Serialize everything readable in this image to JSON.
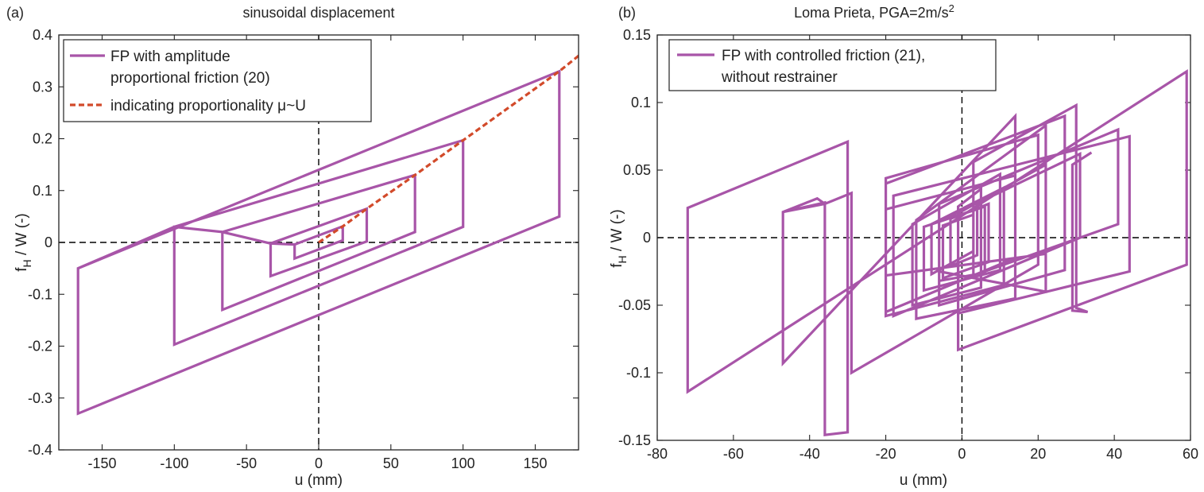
{
  "colors": {
    "series": "#a855a8",
    "proportionality": "#d24a2a",
    "axis": "#222222",
    "zero_line": "#000000"
  },
  "chart_data": [
    {
      "type": "line",
      "panel_label": "(a)",
      "title": "sinusoidal displacement",
      "xlabel": "u (mm)",
      "ylabel_main": "f",
      "ylabel_sub": "H",
      "ylabel_rest": " / W (-)",
      "xlim": [
        -180,
        180
      ],
      "ylim": [
        -0.4,
        0.4
      ],
      "xticks": [
        -150,
        -100,
        -50,
        0,
        50,
        100,
        150
      ],
      "yticks": [
        -0.4,
        -0.3,
        -0.2,
        -0.1,
        0,
        0.1,
        0.2,
        0.3,
        0.4
      ],
      "grid": false,
      "zero_lines": true,
      "legend_position": "top-left",
      "legend": [
        "FP with amplitude",
        "proportional friction (20)",
        "indicating proportionality μ~U"
      ],
      "series": [
        {
          "name": "FP with amplitude proportional friction (20)",
          "style": "solid",
          "points": [
            [
              -166.7,
              -0.05
            ],
            [
              166.7,
              0.33
            ],
            [
              166.7,
              0.05
            ],
            [
              -166.7,
              -0.33
            ],
            [
              -166.7,
              -0.05
            ],
            [
              -100,
              0.03
            ],
            [
              100,
              0.197
            ],
            [
              100,
              0.03
            ],
            [
              -100,
              -0.197
            ],
            [
              -100,
              0.03
            ],
            [
              -66.7,
              0.02
            ],
            [
              66.7,
              0.13
            ],
            [
              66.7,
              0.02
            ],
            [
              -66.7,
              -0.13
            ],
            [
              -66.7,
              0.02
            ],
            [
              -33.3,
              -0.002
            ],
            [
              33.3,
              0.065
            ],
            [
              33.3,
              0.002
            ],
            [
              -33.3,
              -0.065
            ],
            [
              -33.3,
              -0.002
            ],
            [
              -16.7,
              -0.004
            ],
            [
              16.7,
              0.031
            ],
            [
              16.7,
              0.004
            ],
            [
              -16.7,
              -0.031
            ],
            [
              -16.7,
              -0.004
            ]
          ]
        },
        {
          "name": "indicating proportionality μ~U",
          "style": "dashed",
          "points": [
            [
              0,
              0
            ],
            [
              16.7,
              0.031
            ],
            [
              33.3,
              0.065
            ],
            [
              66.7,
              0.13
            ],
            [
              100,
              0.197
            ],
            [
              166.7,
              0.33
            ],
            [
              181,
              0.362
            ]
          ]
        }
      ]
    },
    {
      "type": "line",
      "panel_label": "(b)",
      "title": "Loma Prieta, PGA=2m/s",
      "title_superscript": "2",
      "xlabel": "u (mm)",
      "ylabel_main": "f",
      "ylabel_sub": "H",
      "ylabel_rest": " / W (-)",
      "xlim": [
        -80,
        60
      ],
      "ylim": [
        -0.15,
        0.15
      ],
      "xticks": [
        -80,
        -60,
        -40,
        -20,
        0,
        20,
        40,
        60
      ],
      "yticks": [
        -0.15,
        -0.1,
        -0.05,
        0,
        0.05,
        0.1,
        0.15
      ],
      "grid": false,
      "zero_lines": true,
      "legend_position": "top-left",
      "legend": [
        "FP with controlled friction (21),",
        "without restrainer"
      ],
      "series": [
        {
          "name": "FP with controlled friction (21), without restrainer",
          "style": "solid",
          "points": [
            [
              -72,
              -0.114
            ],
            [
              -72,
              0.022
            ],
            [
              -30,
              0.071
            ],
            [
              -30,
              -0.144
            ],
            [
              -36,
              -0.146
            ],
            [
              -36,
              0.025
            ],
            [
              -38,
              0.029
            ],
            [
              -47,
              0.019
            ],
            [
              -47,
              -0.093
            ],
            [
              14,
              0.09
            ],
            [
              14,
              -0.015
            ],
            [
              -20,
              -0.055
            ],
            [
              -20,
              0.044
            ],
            [
              20,
              0.076
            ],
            [
              20,
              -0.02
            ],
            [
              -29,
              -0.1
            ],
            [
              -29,
              0.033
            ],
            [
              -36,
              0.025
            ],
            [
              -47,
              0.019
            ],
            [
              -36,
              0.026
            ],
            [
              -36,
              -0.146
            ],
            [
              -30,
              -0.144
            ],
            [
              -30,
              0.071
            ],
            [
              -72,
              0.022
            ],
            [
              -72,
              -0.114
            ],
            [
              59,
              0.123
            ],
            [
              59,
              -0.02
            ],
            [
              -1,
              -0.083
            ],
            [
              -1,
              0.023
            ],
            [
              5,
              0.036
            ],
            [
              5,
              -0.037
            ],
            [
              -13,
              -0.05
            ],
            [
              -13,
              0.01
            ],
            [
              10,
              0.047
            ],
            [
              10,
              -0.024
            ],
            [
              -10,
              -0.039
            ],
            [
              -10,
              0.008
            ],
            [
              6,
              0.023
            ],
            [
              6,
              -0.026
            ],
            [
              -6,
              -0.032
            ],
            [
              -6,
              0.012
            ],
            [
              4,
              0.021
            ],
            [
              4,
              -0.013
            ],
            [
              -3,
              -0.021
            ],
            [
              -3,
              0.014
            ],
            [
              7,
              0.025
            ],
            [
              7,
              -0.018
            ],
            [
              -5,
              -0.03
            ],
            [
              -5,
              0.009
            ],
            [
              3,
              0.017
            ],
            [
              3,
              -0.01
            ],
            [
              -8,
              -0.027
            ],
            [
              -8,
              0.01
            ],
            [
              11,
              0.037
            ],
            [
              11,
              -0.035
            ],
            [
              -20,
              -0.058
            ],
            [
              -20,
              0.021
            ],
            [
              14,
              0.046
            ],
            [
              14,
              -0.045
            ],
            [
              -12,
              -0.06
            ],
            [
              -12,
              0.013
            ],
            [
              22,
              0.083
            ],
            [
              22,
              -0.012
            ],
            [
              -20,
              -0.028
            ],
            [
              -20,
              0.04
            ],
            [
              27,
              0.09
            ],
            [
              27,
              -0.024
            ],
            [
              -6,
              -0.05
            ],
            [
              -6,
              0.012
            ],
            [
              31,
              0.062
            ],
            [
              31,
              0.0
            ],
            [
              -18,
              -0.058
            ],
            [
              -18,
              0.031
            ],
            [
              44,
              0.075
            ],
            [
              44,
              -0.025
            ],
            [
              -1,
              -0.056
            ],
            [
              -1,
              0.018
            ],
            [
              22,
              0.054
            ],
            [
              22,
              -0.04
            ],
            [
              -6,
              -0.025
            ],
            [
              -6,
              0.025
            ],
            [
              41,
              0.08
            ],
            [
              41,
              0.01
            ],
            [
              3,
              -0.028
            ],
            [
              3,
              0.056
            ],
            [
              30,
              0.098
            ],
            [
              30,
              -0.052
            ],
            [
              33,
              -0.055
            ],
            [
              29,
              -0.054
            ],
            [
              29,
              0.054
            ],
            [
              34,
              0.063
            ]
          ]
        }
      ]
    }
  ]
}
